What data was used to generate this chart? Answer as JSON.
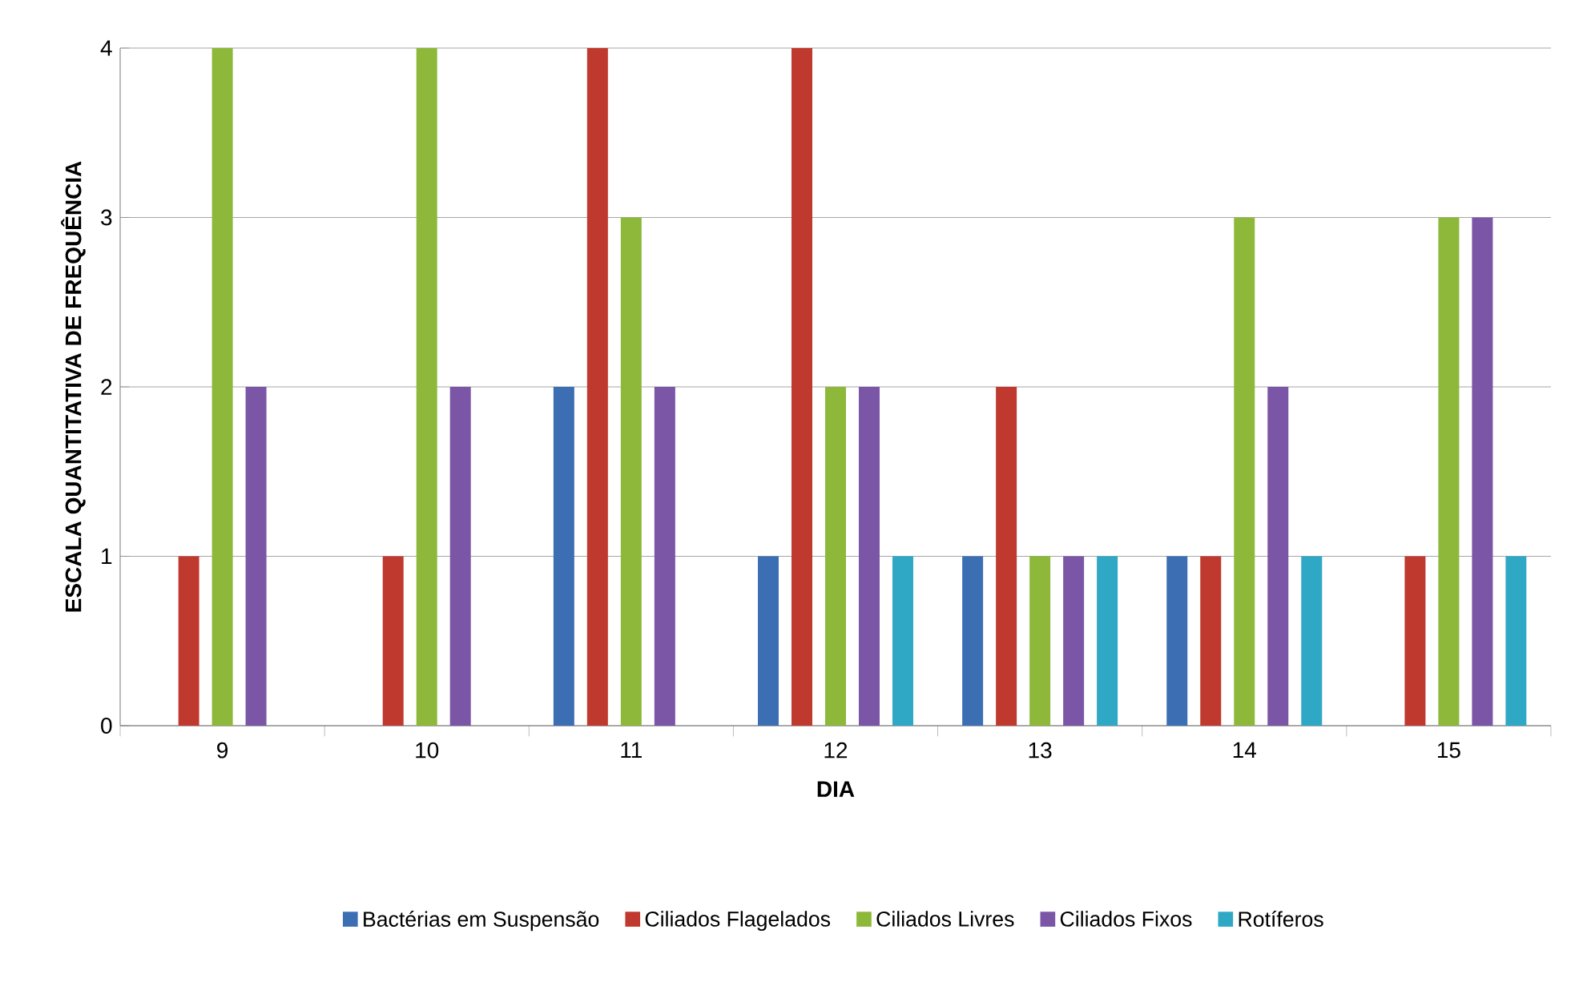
{
  "chart_data": {
    "type": "bar",
    "xlabel": "DIA",
    "ylabel": "ESCALA QUANTITATIVA DE FREQUÊNCIA",
    "categories": [
      "9",
      "10",
      "11",
      "12",
      "13",
      "14",
      "15"
    ],
    "series": [
      {
        "name": "Bactérias em Suspensão",
        "color": "#3c6eb4",
        "values": [
          0,
          0,
          2,
          1,
          1,
          1,
          0
        ]
      },
      {
        "name": "Ciliados Flagelados",
        "color": "#c0392f",
        "values": [
          1,
          1,
          4,
          4,
          2,
          1,
          1
        ]
      },
      {
        "name": "Ciliados Livres",
        "color": "#8db83a",
        "values": [
          4,
          4,
          3,
          2,
          1,
          3,
          3
        ]
      },
      {
        "name": "Ciliados Fixos",
        "color": "#7b55a6",
        "values": [
          2,
          2,
          2,
          2,
          1,
          2,
          3
        ]
      },
      {
        "name": "Rotíferos",
        "color": "#2fa8c6",
        "values": [
          0,
          0,
          0,
          1,
          1,
          1,
          1
        ]
      }
    ],
    "ylim": [
      0,
      4
    ],
    "yticks": [
      0,
      1,
      2,
      3,
      4
    ],
    "grid": "y",
    "legend": "bottom"
  }
}
